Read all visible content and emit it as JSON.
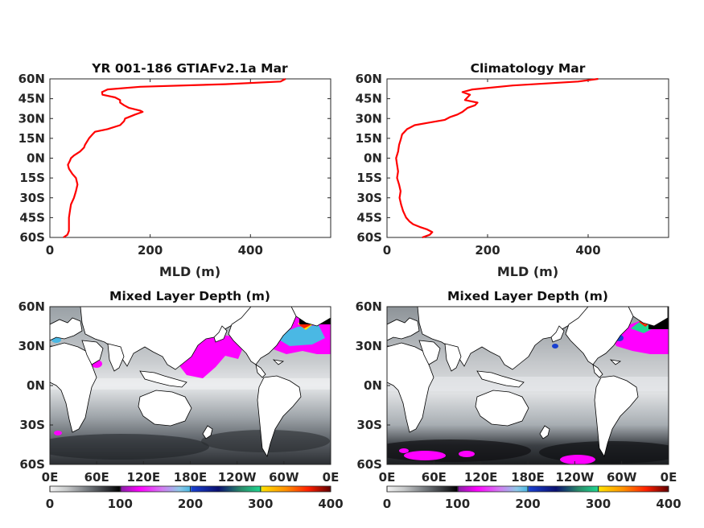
{
  "chart_data": [
    {
      "type": "line",
      "title": "YR 001-186 GTIAFv2.1a Mar",
      "xlabel": "MLD (m)",
      "ylabel": "",
      "xlim": [
        0,
        560
      ],
      "ylim": [
        -60,
        60
      ],
      "xticks": [
        "0",
        "200",
        "400"
      ],
      "yticks": [
        "60N",
        "45N",
        "30N",
        "15N",
        "0N",
        "15S",
        "30S",
        "45S",
        "60S"
      ],
      "color": "#ff0000",
      "series": [
        {
          "lat": [
            -60,
            -58,
            -55,
            -50,
            -45,
            -40,
            -35,
            -30,
            -25,
            -20,
            -15,
            -12,
            -8,
            -5,
            -2,
            0,
            2,
            5,
            8,
            10,
            15,
            18,
            20,
            22,
            25,
            28,
            30,
            33,
            35,
            36,
            38,
            40,
            42,
            44,
            46,
            48,
            50,
            52,
            54,
            56,
            58,
            60
          ],
          "mld": [
            27,
            35,
            38,
            38,
            38,
            40,
            42,
            48,
            52,
            55,
            52,
            45,
            38,
            36,
            40,
            42,
            48,
            60,
            68,
            70,
            78,
            85,
            90,
            115,
            140,
            148,
            150,
            170,
            185,
            180,
            158,
            148,
            140,
            140,
            130,
            105,
            104,
            115,
            180,
            350,
            460,
            470
          ]
        }
      ]
    },
    {
      "type": "line",
      "title": "Climatology Mar",
      "xlabel": "MLD (m)",
      "ylabel": "",
      "xlim": [
        0,
        560
      ],
      "ylim": [
        -60,
        60
      ],
      "xticks": [
        "0",
        "200",
        "400"
      ],
      "yticks": [
        "60N",
        "45N",
        "30N",
        "15N",
        "0N",
        "15S",
        "30S",
        "45S",
        "60S"
      ],
      "color": "#ff0000",
      "series": [
        {
          "lat": [
            -60,
            -58,
            -56,
            -54,
            -52,
            -50,
            -48,
            -45,
            -40,
            -35,
            -30,
            -25,
            -20,
            -15,
            -10,
            -5,
            0,
            5,
            10,
            15,
            18,
            20,
            22,
            25,
            27,
            29,
            31,
            33,
            35,
            38,
            40,
            42,
            44,
            46,
            48,
            50,
            52,
            55,
            58,
            60
          ],
          "mld": [
            70,
            85,
            90,
            80,
            65,
            52,
            45,
            38,
            32,
            28,
            25,
            27,
            24,
            20,
            22,
            20,
            18,
            22,
            24,
            28,
            30,
            35,
            40,
            55,
            85,
            115,
            125,
            140,
            150,
            160,
            175,
            180,
            155,
            160,
            165,
            150,
            170,
            250,
            380,
            420
          ]
        }
      ]
    },
    {
      "type": "heatmap",
      "title": "Mixed Layer Depth (m)",
      "xticks": [
        "0E",
        "60E",
        "120E",
        "180E",
        "120W",
        "60W",
        "0E"
      ],
      "yticks": [
        "60N",
        "30N",
        "0N",
        "30S",
        "60S"
      ],
      "xlim": [
        0,
        360
      ],
      "ylim": [
        -60,
        60
      ],
      "colorbar": {
        "range": [
          0,
          400
        ],
        "ticks": [
          "0",
          "100",
          "200",
          "300",
          "400"
        ]
      }
    },
    {
      "type": "heatmap",
      "title": "Mixed Layer Depth (m)",
      "xticks": [
        "0E",
        "60E",
        "120E",
        "180E",
        "120W",
        "60W",
        "0E"
      ],
      "yticks": [
        "60N",
        "30N",
        "0N",
        "30S",
        "60S"
      ],
      "xlim": [
        0,
        360
      ],
      "ylim": [
        -60,
        60
      ],
      "colorbar": {
        "range": [
          0,
          400
        ],
        "ticks": [
          "0",
          "100",
          "200",
          "300",
          "400"
        ]
      }
    }
  ],
  "colors": {
    "profile_line": "#ff0000",
    "axis": "#262626",
    "land": "#ffffff",
    "colormap_stops": [
      "#f2f2f2",
      "#b4b7b8",
      "#70757a",
      "#2a2c30",
      "#000000",
      "#8a1fa6",
      "#ff00ff",
      "#d27cf2",
      "#8fc8e8",
      "#4ab8e4",
      "#1a40d0",
      "#0a1070",
      "#2a8a6a",
      "#1fd890",
      "#ffe000",
      "#ff9000",
      "#ff2000",
      "#c00000",
      "#600000"
    ]
  }
}
